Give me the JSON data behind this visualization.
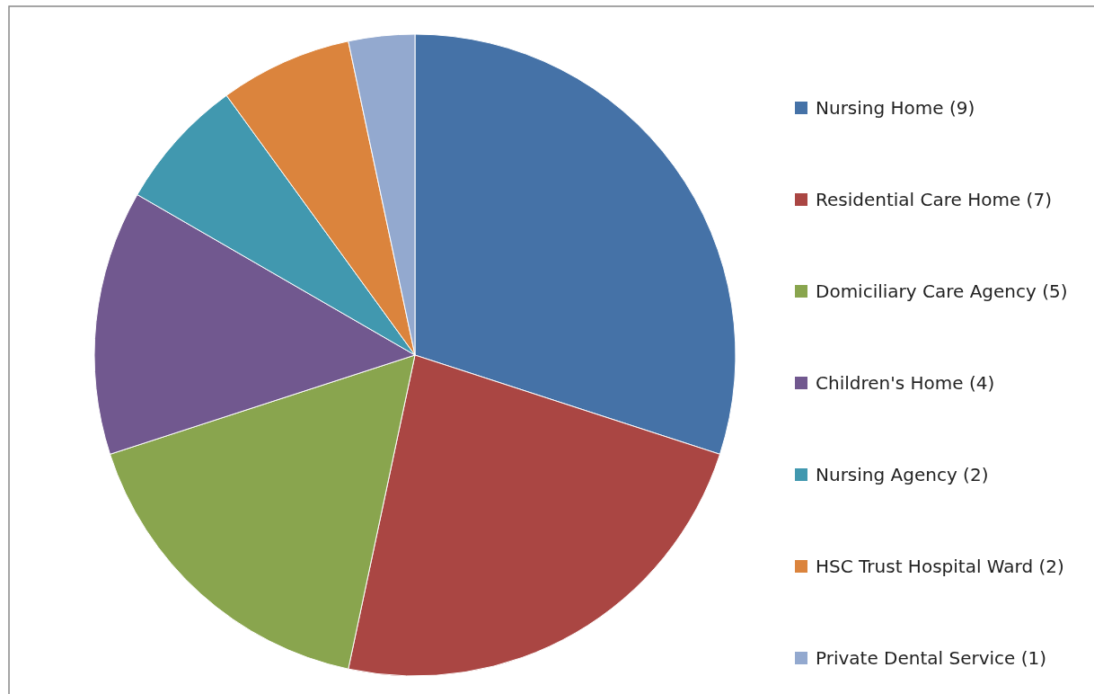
{
  "chart_data": {
    "type": "pie",
    "categories": [
      "Nursing Home (9)",
      "Residential Care Home (7)",
      "Domiciliary Care Agency (5)",
      "Children's Home (4)",
      "Nursing Agency (2)",
      "HSC Trust Hospital Ward (2)",
      "Private Dental Service (1)"
    ],
    "values": [
      9,
      7,
      5,
      4,
      2,
      2,
      1
    ],
    "colors": [
      "#4572a7",
      "#aa4643",
      "#89a54e",
      "#71588f",
      "#4198af",
      "#db843d",
      "#93a9cf"
    ],
    "legend": "right"
  }
}
